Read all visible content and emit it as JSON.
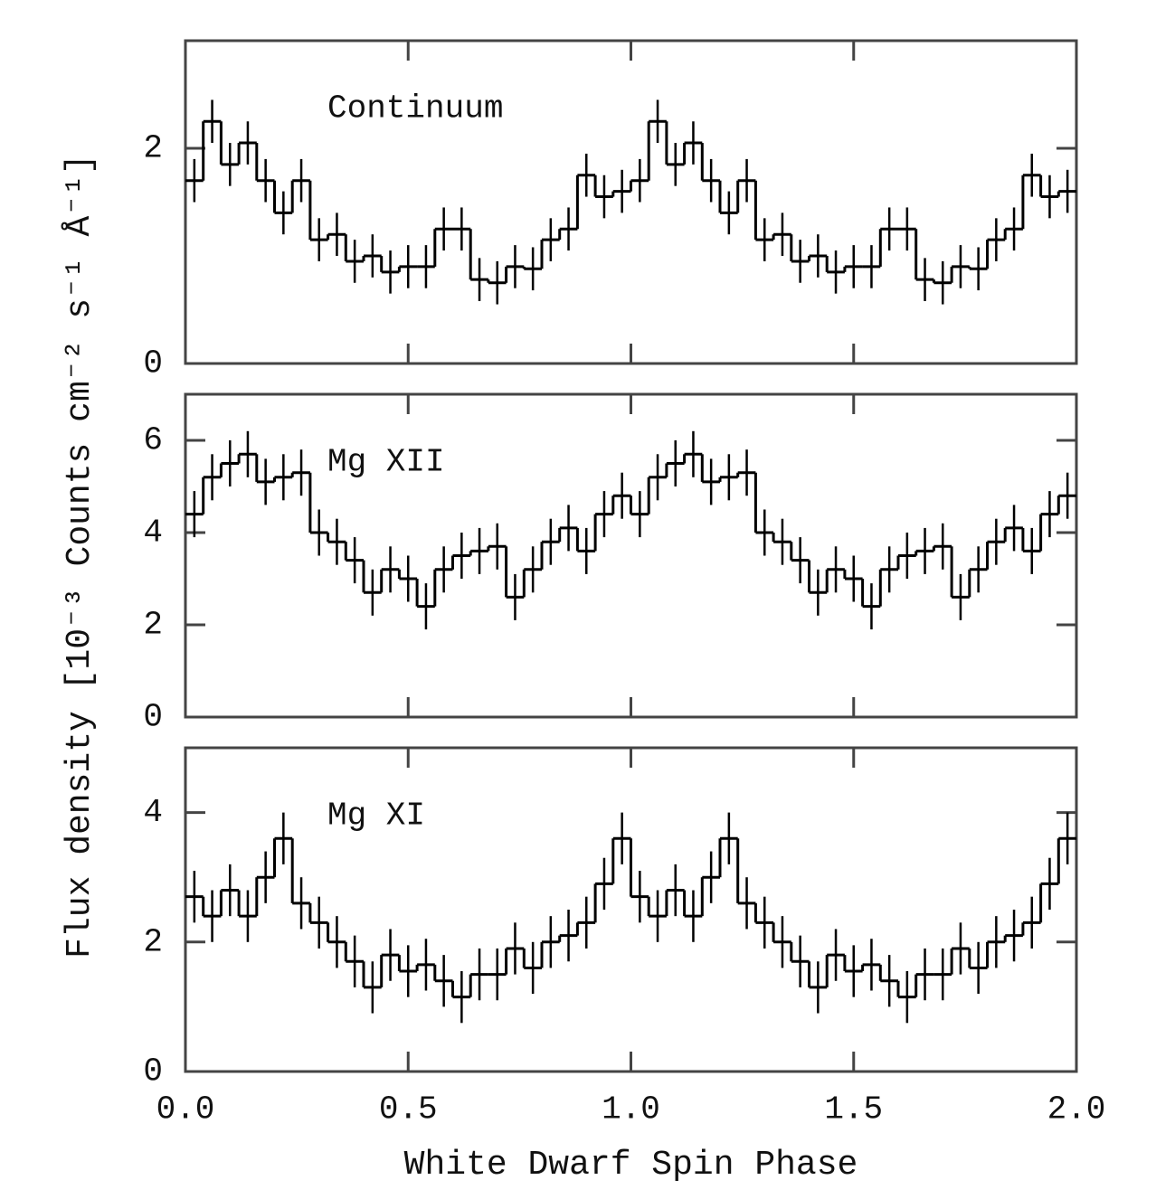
{
  "chart_data": [
    {
      "type": "histogram",
      "label": "Continuum",
      "color": "#000",
      "bins": [
        0,
        0.04,
        0.08,
        0.12,
        0.16,
        0.2,
        0.24,
        0.28,
        0.32,
        0.36,
        0.4,
        0.44,
        0.48,
        0.52,
        0.56,
        0.6,
        0.64,
        0.68,
        0.72,
        0.76,
        0.8,
        0.84,
        0.88,
        0.92,
        0.96,
        1,
        1.04,
        1.08,
        1.12,
        1.16,
        1.2,
        1.24,
        1.28,
        1.32,
        1.36,
        1.4,
        1.44,
        1.48,
        1.52,
        1.56,
        1.6,
        1.64,
        1.68,
        1.72,
        1.76,
        1.8,
        1.84,
        1.88,
        1.92,
        1.96,
        2
      ],
      "values": [
        1.7,
        2.25,
        1.85,
        2.05,
        1.7,
        1.4,
        1.7,
        1.15,
        1.2,
        0.95,
        1.0,
        0.85,
        0.9,
        0.9,
        1.25,
        1.25,
        0.78,
        0.75,
        0.9,
        0.88,
        1.15,
        1.25,
        1.75,
        1.55,
        1.6,
        1.7,
        2.25,
        1.85,
        2.05,
        1.7,
        1.4,
        1.7,
        1.15,
        1.2,
        0.95,
        1.0,
        0.85,
        0.9,
        0.9,
        1.25,
        1.25,
        0.78,
        0.75,
        0.9,
        0.88,
        1.15,
        1.25,
        1.75,
        1.55,
        1.6
      ],
      "error": 0.2,
      "xlim": [
        0,
        2
      ],
      "ylim": [
        0,
        3
      ],
      "yticks": [
        0,
        2
      ]
    },
    {
      "type": "histogram",
      "label": "Mg XII",
      "color": "#000",
      "ylabel": "Flux density [10⁻³ Counts cm⁻² s⁻¹ Å⁻¹]",
      "bins": [
        0,
        0.04,
        0.08,
        0.12,
        0.16,
        0.2,
        0.24,
        0.28,
        0.32,
        0.36,
        0.4,
        0.44,
        0.48,
        0.52,
        0.56,
        0.6,
        0.64,
        0.68,
        0.72,
        0.76,
        0.8,
        0.84,
        0.88,
        0.92,
        0.96,
        1,
        1.04,
        1.08,
        1.12,
        1.16,
        1.2,
        1.24,
        1.28,
        1.32,
        1.36,
        1.4,
        1.44,
        1.48,
        1.52,
        1.56,
        1.6,
        1.64,
        1.68,
        1.72,
        1.76,
        1.8,
        1.84,
        1.88,
        1.92,
        1.96,
        2
      ],
      "values": [
        4.4,
        5.2,
        5.5,
        5.7,
        5.1,
        5.2,
        5.3,
        4.0,
        3.8,
        3.4,
        2.7,
        3.2,
        3.0,
        2.4,
        3.2,
        3.5,
        3.6,
        3.7,
        2.6,
        3.2,
        3.8,
        4.1,
        3.6,
        4.4,
        4.8,
        4.4,
        5.2,
        5.5,
        5.7,
        5.1,
        5.2,
        5.3,
        4.0,
        3.8,
        3.4,
        2.7,
        3.2,
        3.0,
        2.4,
        3.2,
        3.5,
        3.6,
        3.7,
        2.6,
        3.2,
        3.8,
        4.1,
        3.6,
        4.4,
        4.8
      ],
      "error": 0.5,
      "xlim": [
        0,
        2
      ],
      "ylim": [
        0,
        7
      ],
      "yticks": [
        0,
        2,
        4,
        6
      ]
    },
    {
      "type": "histogram",
      "label": "Mg XI",
      "color": "#000",
      "xlabel": "White Dwarf Spin Phase",
      "bins": [
        0,
        0.04,
        0.08,
        0.12,
        0.16,
        0.2,
        0.24,
        0.28,
        0.32,
        0.36,
        0.4,
        0.44,
        0.48,
        0.52,
        0.56,
        0.6,
        0.64,
        0.68,
        0.72,
        0.76,
        0.8,
        0.84,
        0.88,
        0.92,
        0.96,
        1,
        1.04,
        1.08,
        1.12,
        1.16,
        1.2,
        1.24,
        1.28,
        1.32,
        1.36,
        1.4,
        1.44,
        1.48,
        1.52,
        1.56,
        1.6,
        1.64,
        1.68,
        1.72,
        1.76,
        1.8,
        1.84,
        1.88,
        1.92,
        1.96,
        2
      ],
      "values": [
        2.7,
        2.4,
        2.8,
        2.4,
        3.0,
        3.6,
        2.6,
        2.3,
        2.0,
        1.7,
        1.3,
        1.8,
        1.55,
        1.65,
        1.4,
        1.15,
        1.5,
        1.5,
        1.9,
        1.6,
        2.0,
        2.1,
        2.3,
        2.9,
        3.6,
        2.7,
        2.4,
        2.8,
        2.4,
        3.0,
        3.6,
        2.6,
        2.3,
        2.0,
        1.7,
        1.3,
        1.8,
        1.55,
        1.65,
        1.4,
        1.15,
        1.5,
        1.5,
        1.9,
        1.6,
        2.0,
        2.1,
        2.3,
        2.9,
        3.6
      ],
      "error": 0.4,
      "xlim": [
        0,
        2
      ],
      "ylim": [
        0,
        5
      ],
      "yticks": [
        0,
        2,
        4
      ],
      "xticks": [
        {
          "value": 0,
          "label": "0.0"
        },
        {
          "value": 0.5,
          "label": "0.5"
        },
        {
          "value": 1,
          "label": "1.0"
        },
        {
          "value": 1.5,
          "label": "1.5"
        },
        {
          "value": 2,
          "label": "2.0"
        }
      ]
    }
  ]
}
